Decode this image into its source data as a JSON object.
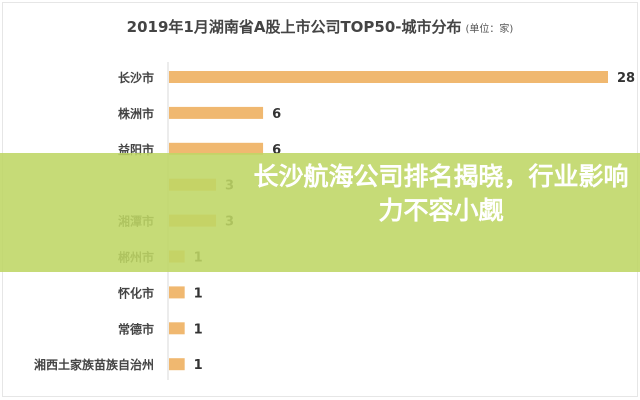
{
  "chart_data": {
    "type": "bar",
    "orientation": "horizontal",
    "title": "2019年1月湖南省A股上市公司TOP50-城市分布",
    "unit_note": "(单位：家)",
    "categories": [
      "长沙市",
      "株洲市",
      "益阳市",
      "",
      "湘潭市",
      "郴州市",
      "怀化市",
      "常德市",
      "湘西土家族苗族自治州"
    ],
    "values": [
      28,
      6,
      6,
      3,
      3,
      1,
      1,
      1,
      1
    ],
    "bar_color": "#f0b870",
    "xlim": [
      0,
      28
    ],
    "grid": false
  },
  "banner": {
    "headline": "长沙航海公司排名揭晓，行业影响力不容小觑",
    "color": "#bed664"
  }
}
